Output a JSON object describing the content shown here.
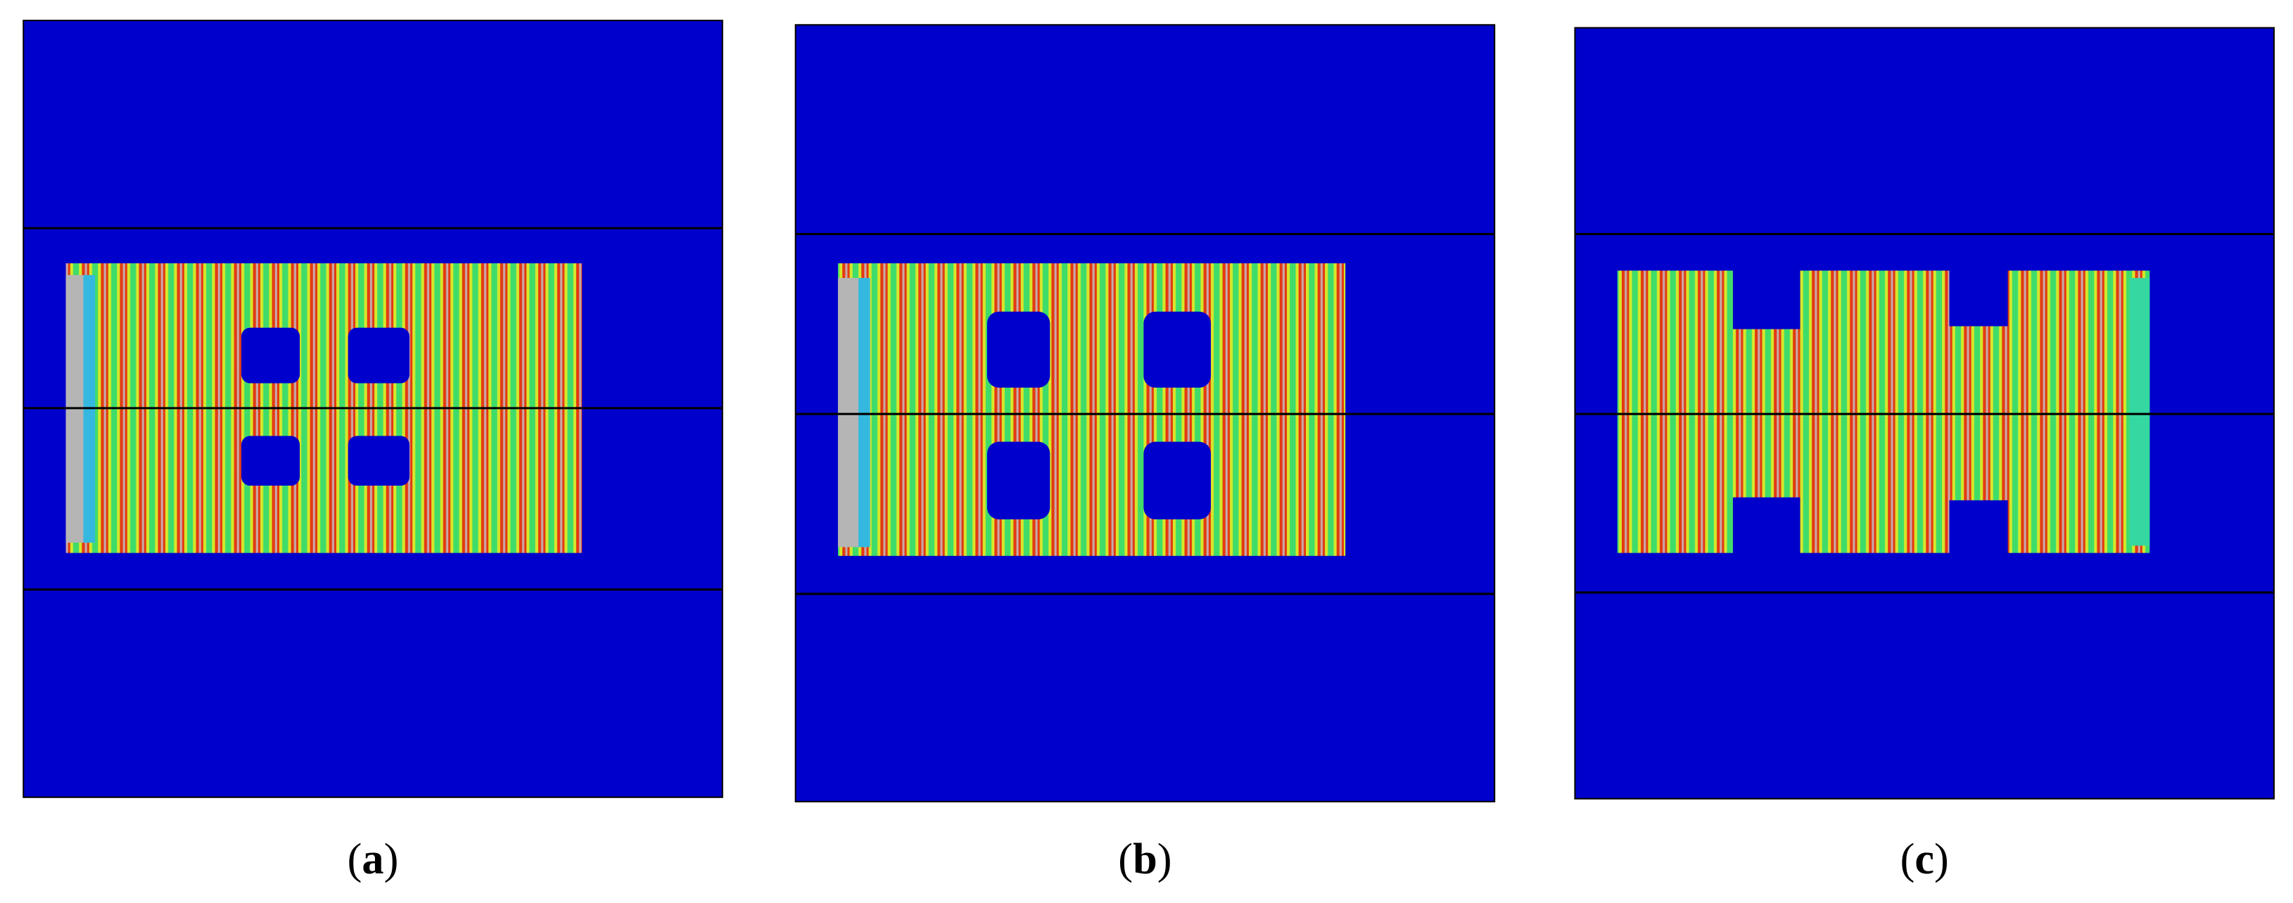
{
  "panels": [
    {
      "label": [
        "(",
        "a",
        ")"
      ]
    },
    {
      "label": [
        "(",
        "b",
        ")"
      ]
    },
    {
      "label": [
        "(",
        "c",
        ")"
      ]
    }
  ]
}
